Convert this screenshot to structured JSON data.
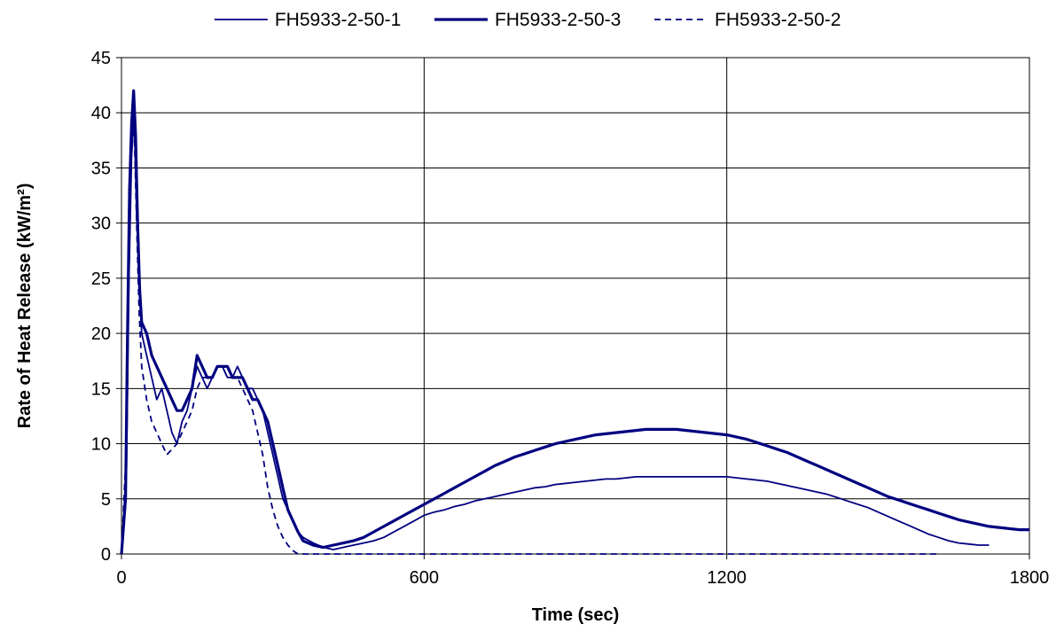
{
  "chart_data": {
    "type": "line",
    "title": "",
    "xlabel": "Time (sec)",
    "ylabel": "Rate of Heat Release (kW/m²)",
    "xlim": [
      0,
      1800
    ],
    "ylim": [
      0,
      45
    ],
    "x_ticks": [
      "0",
      "600",
      "1200",
      "1800"
    ],
    "y_ticks": [
      "0",
      "5",
      "10",
      "15",
      "20",
      "25",
      "30",
      "35",
      "40",
      "45"
    ],
    "grid": true,
    "legend_position": "top",
    "line_color": "#000080",
    "series": [
      {
        "name": "FH5933-2-50-1",
        "style": "solid-thin",
        "points": [
          [
            0,
            0
          ],
          [
            10,
            8
          ],
          [
            15,
            25
          ],
          [
            20,
            36
          ],
          [
            25,
            40
          ],
          [
            30,
            31
          ],
          [
            35,
            25
          ],
          [
            40,
            20
          ],
          [
            50,
            18
          ],
          [
            60,
            16
          ],
          [
            70,
            14
          ],
          [
            80,
            15
          ],
          [
            90,
            13
          ],
          [
            100,
            11
          ],
          [
            110,
            10
          ],
          [
            120,
            12
          ],
          [
            130,
            13
          ],
          [
            140,
            15
          ],
          [
            150,
            17
          ],
          [
            160,
            16
          ],
          [
            170,
            15
          ],
          [
            180,
            16
          ],
          [
            190,
            17
          ],
          [
            200,
            17
          ],
          [
            210,
            16
          ],
          [
            220,
            16
          ],
          [
            230,
            17
          ],
          [
            240,
            16
          ],
          [
            250,
            15
          ],
          [
            260,
            15
          ],
          [
            270,
            14
          ],
          [
            280,
            13
          ],
          [
            290,
            11
          ],
          [
            300,
            9
          ],
          [
            310,
            7
          ],
          [
            320,
            5
          ],
          [
            330,
            4
          ],
          [
            340,
            3
          ],
          [
            350,
            2
          ],
          [
            360,
            1.5
          ],
          [
            380,
            1
          ],
          [
            400,
            0.6
          ],
          [
            420,
            0.4
          ],
          [
            440,
            0.6
          ],
          [
            460,
            0.8
          ],
          [
            480,
            1
          ],
          [
            500,
            1.2
          ],
          [
            520,
            1.5
          ],
          [
            540,
            2
          ],
          [
            560,
            2.5
          ],
          [
            580,
            3
          ],
          [
            600,
            3.5
          ],
          [
            620,
            3.8
          ],
          [
            640,
            4
          ],
          [
            660,
            4.3
          ],
          [
            680,
            4.5
          ],
          [
            700,
            4.8
          ],
          [
            720,
            5
          ],
          [
            740,
            5.2
          ],
          [
            760,
            5.4
          ],
          [
            780,
            5.6
          ],
          [
            800,
            5.8
          ],
          [
            820,
            6
          ],
          [
            840,
            6.1
          ],
          [
            860,
            6.3
          ],
          [
            880,
            6.4
          ],
          [
            900,
            6.5
          ],
          [
            920,
            6.6
          ],
          [
            940,
            6.7
          ],
          [
            960,
            6.8
          ],
          [
            980,
            6.8
          ],
          [
            1000,
            6.9
          ],
          [
            1020,
            7
          ],
          [
            1040,
            7
          ],
          [
            1060,
            7
          ],
          [
            1080,
            7
          ],
          [
            1100,
            7
          ],
          [
            1120,
            7
          ],
          [
            1140,
            7
          ],
          [
            1160,
            7
          ],
          [
            1180,
            7
          ],
          [
            1200,
            7
          ],
          [
            1220,
            6.9
          ],
          [
            1240,
            6.8
          ],
          [
            1260,
            6.7
          ],
          [
            1280,
            6.6
          ],
          [
            1300,
            6.4
          ],
          [
            1320,
            6.2
          ],
          [
            1340,
            6
          ],
          [
            1360,
            5.8
          ],
          [
            1380,
            5.6
          ],
          [
            1400,
            5.4
          ],
          [
            1420,
            5.1
          ],
          [
            1440,
            4.8
          ],
          [
            1460,
            4.5
          ],
          [
            1480,
            4.2
          ],
          [
            1500,
            3.8
          ],
          [
            1520,
            3.4
          ],
          [
            1540,
            3
          ],
          [
            1560,
            2.6
          ],
          [
            1580,
            2.2
          ],
          [
            1600,
            1.8
          ],
          [
            1620,
            1.5
          ],
          [
            1640,
            1.2
          ],
          [
            1660,
            1
          ],
          [
            1680,
            0.9
          ],
          [
            1700,
            0.8
          ],
          [
            1720,
            0.8
          ]
        ]
      },
      {
        "name": "FH5933-2-50-3",
        "style": "solid-thick",
        "points": [
          [
            0,
            0
          ],
          [
            8,
            5
          ],
          [
            12,
            20
          ],
          [
            16,
            33
          ],
          [
            20,
            39
          ],
          [
            24,
            42
          ],
          [
            28,
            38
          ],
          [
            32,
            30
          ],
          [
            36,
            24
          ],
          [
            40,
            21
          ],
          [
            50,
            20
          ],
          [
            60,
            18
          ],
          [
            70,
            17
          ],
          [
            80,
            16
          ],
          [
            90,
            15
          ],
          [
            100,
            14
          ],
          [
            110,
            13
          ],
          [
            120,
            13
          ],
          [
            130,
            14
          ],
          [
            140,
            15
          ],
          [
            150,
            18
          ],
          [
            160,
            17
          ],
          [
            170,
            16
          ],
          [
            180,
            16
          ],
          [
            190,
            17
          ],
          [
            200,
            17
          ],
          [
            210,
            17
          ],
          [
            220,
            16
          ],
          [
            230,
            16
          ],
          [
            240,
            16
          ],
          [
            250,
            15
          ],
          [
            260,
            14
          ],
          [
            270,
            14
          ],
          [
            280,
            13
          ],
          [
            290,
            12
          ],
          [
            300,
            10
          ],
          [
            310,
            8
          ],
          [
            320,
            6
          ],
          [
            330,
            4
          ],
          [
            340,
            3
          ],
          [
            350,
            2
          ],
          [
            360,
            1.2
          ],
          [
            380,
            0.8
          ],
          [
            400,
            0.6
          ],
          [
            420,
            0.8
          ],
          [
            440,
            1
          ],
          [
            460,
            1.2
          ],
          [
            480,
            1.5
          ],
          [
            500,
            2
          ],
          [
            520,
            2.5
          ],
          [
            540,
            3
          ],
          [
            560,
            3.5
          ],
          [
            580,
            4
          ],
          [
            600,
            4.5
          ],
          [
            620,
            5
          ],
          [
            640,
            5.5
          ],
          [
            660,
            6
          ],
          [
            680,
            6.5
          ],
          [
            700,
            7
          ],
          [
            720,
            7.5
          ],
          [
            740,
            8
          ],
          [
            760,
            8.4
          ],
          [
            780,
            8.8
          ],
          [
            800,
            9.1
          ],
          [
            820,
            9.4
          ],
          [
            840,
            9.7
          ],
          [
            860,
            10
          ],
          [
            880,
            10.2
          ],
          [
            900,
            10.4
          ],
          [
            920,
            10.6
          ],
          [
            940,
            10.8
          ],
          [
            960,
            10.9
          ],
          [
            980,
            11
          ],
          [
            1000,
            11.1
          ],
          [
            1020,
            11.2
          ],
          [
            1040,
            11.3
          ],
          [
            1060,
            11.3
          ],
          [
            1080,
            11.3
          ],
          [
            1100,
            11.3
          ],
          [
            1120,
            11.2
          ],
          [
            1140,
            11.1
          ],
          [
            1160,
            11
          ],
          [
            1180,
            10.9
          ],
          [
            1200,
            10.8
          ],
          [
            1220,
            10.6
          ],
          [
            1240,
            10.4
          ],
          [
            1260,
            10.1
          ],
          [
            1280,
            9.8
          ],
          [
            1300,
            9.5
          ],
          [
            1320,
            9.2
          ],
          [
            1340,
            8.8
          ],
          [
            1360,
            8.4
          ],
          [
            1380,
            8
          ],
          [
            1400,
            7.6
          ],
          [
            1420,
            7.2
          ],
          [
            1440,
            6.8
          ],
          [
            1460,
            6.4
          ],
          [
            1480,
            6
          ],
          [
            1500,
            5.6
          ],
          [
            1520,
            5.2
          ],
          [
            1540,
            4.9
          ],
          [
            1560,
            4.6
          ],
          [
            1580,
            4.3
          ],
          [
            1600,
            4
          ],
          [
            1620,
            3.7
          ],
          [
            1640,
            3.4
          ],
          [
            1660,
            3.1
          ],
          [
            1680,
            2.9
          ],
          [
            1700,
            2.7
          ],
          [
            1720,
            2.5
          ],
          [
            1740,
            2.4
          ],
          [
            1760,
            2.3
          ],
          [
            1780,
            2.2
          ],
          [
            1800,
            2.2
          ]
        ]
      },
      {
        "name": "FH5933-2-50-2",
        "style": "dashed",
        "points": [
          [
            0,
            0
          ],
          [
            10,
            10
          ],
          [
            15,
            28
          ],
          [
            20,
            37
          ],
          [
            25,
            39
          ],
          [
            30,
            30
          ],
          [
            35,
            22
          ],
          [
            40,
            17
          ],
          [
            50,
            14
          ],
          [
            60,
            12
          ],
          [
            70,
            11
          ],
          [
            80,
            10
          ],
          [
            90,
            9
          ],
          [
            100,
            9.5
          ],
          [
            110,
            10
          ],
          [
            120,
            11
          ],
          [
            130,
            12
          ],
          [
            140,
            13
          ],
          [
            150,
            15
          ],
          [
            160,
            16
          ],
          [
            170,
            16
          ],
          [
            180,
            16
          ],
          [
            190,
            17
          ],
          [
            200,
            17
          ],
          [
            210,
            16
          ],
          [
            220,
            16
          ],
          [
            230,
            16
          ],
          [
            240,
            15
          ],
          [
            250,
            14
          ],
          [
            260,
            13
          ],
          [
            270,
            11
          ],
          [
            280,
            9
          ],
          [
            290,
            6
          ],
          [
            300,
            4
          ],
          [
            310,
            2.5
          ],
          [
            320,
            1.5
          ],
          [
            330,
            0.8
          ],
          [
            340,
            0.3
          ],
          [
            350,
            0
          ],
          [
            400,
            0
          ],
          [
            500,
            0
          ],
          [
            600,
            0
          ],
          [
            700,
            0
          ],
          [
            800,
            0
          ],
          [
            900,
            0
          ],
          [
            1000,
            0
          ],
          [
            1100,
            0
          ],
          [
            1200,
            0
          ],
          [
            1300,
            0
          ],
          [
            1400,
            0
          ],
          [
            1500,
            0
          ],
          [
            1600,
            0
          ],
          [
            1620,
            0
          ]
        ]
      }
    ]
  }
}
